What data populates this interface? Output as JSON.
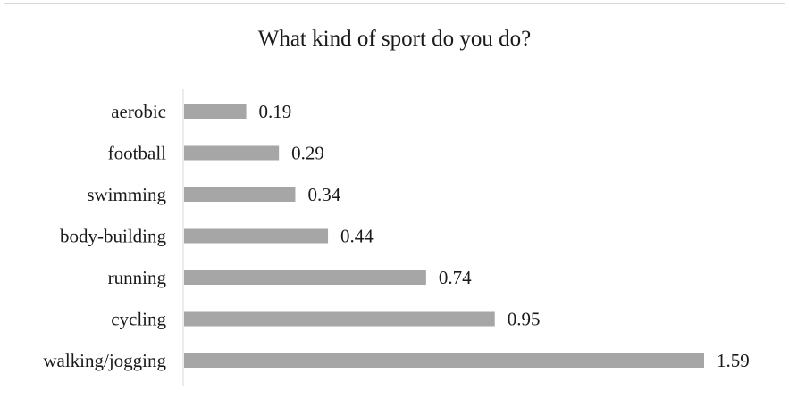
{
  "chart_data": {
    "type": "bar",
    "orientation": "horizontal",
    "title": "What kind of sport do you do?",
    "categories": [
      "aerobic",
      "football",
      "swimming",
      "body-building",
      "running",
      "cycling",
      "walking/jogging"
    ],
    "values": [
      0.19,
      0.29,
      0.34,
      0.44,
      0.74,
      0.95,
      1.59
    ],
    "value_labels": [
      "0.19",
      "0.29",
      "0.34",
      "0.44",
      "0.74",
      "0.95",
      "1.59"
    ],
    "xlabel": "",
    "ylabel": "",
    "xlim": [
      0,
      1.59
    ],
    "grid": false,
    "legend": "none",
    "bar_color": "#a6a6a6",
    "axis_color": "#d9d9d9"
  }
}
